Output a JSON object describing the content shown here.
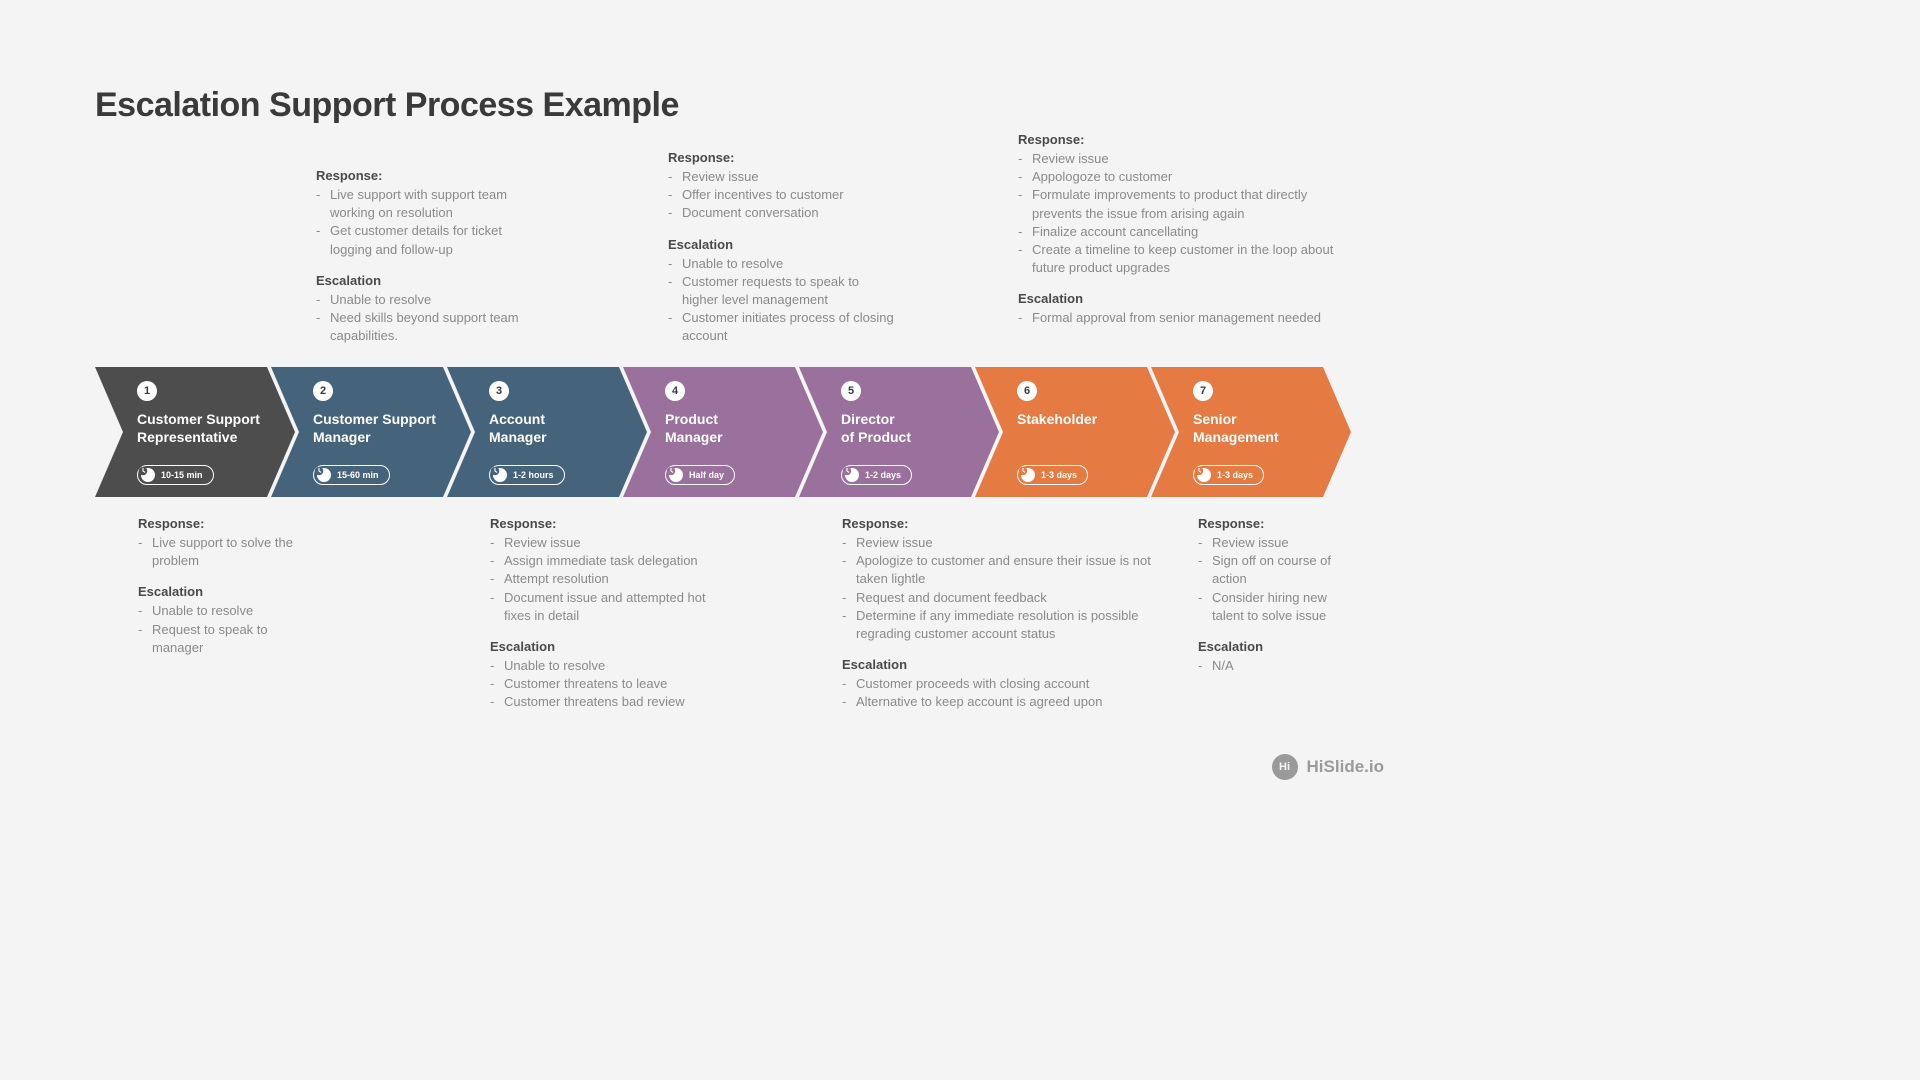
{
  "title": "Escalation Support Process Example",
  "background_color": "#f5f4f4",
  "attribution": {
    "badge": "Hi",
    "text": "HiSlide.io"
  },
  "steps": [
    {
      "num": "1",
      "title": "Customer Support\nRepresentative",
      "time": "10-15 min",
      "color": "#4d4d4d",
      "text_pos": "below",
      "response": [
        "Live support to solve the problem"
      ],
      "escalation": [
        "Unable to resolve",
        "Request to speak to manager"
      ]
    },
    {
      "num": "2",
      "title": "Customer Support\nManager",
      "time": "15-60 min",
      "color": "#46637c",
      "text_pos": "above",
      "response": [
        "Live support with support team working on resolution",
        "Get customer details for ticket logging and follow-up"
      ],
      "escalation": [
        "Unable to resolve",
        "Need skills beyond support team capabilities."
      ]
    },
    {
      "num": "3",
      "title": "Account\nManager",
      "time": "1-2 hours",
      "color": "#46637c",
      "text_pos": "below",
      "response": [
        "Review issue",
        "Assign immediate task delegation",
        "Attempt resolution",
        "Document issue and attempted hot fixes in detail"
      ],
      "escalation": [
        "Unable to resolve",
        "Customer threatens to leave",
        "Customer threatens bad review"
      ]
    },
    {
      "num": "4",
      "title": "Product\nManager",
      "time": "Half day",
      "color": "#99719c",
      "text_pos": "above",
      "response": [
        "Review issue",
        "Offer incentives to customer",
        "Document conversation"
      ],
      "escalation": [
        "Unable to resolve",
        "Customer requests to speak to higher level management",
        "Customer initiates process of closing account"
      ]
    },
    {
      "num": "5",
      "title": "Director\nof Product",
      "time": "1-2 days",
      "color": "#99719c",
      "text_pos": "below",
      "response": [
        "Review issue",
        "Apologize to customer and ensure their issue is not taken lightle",
        "Request and document feedback",
        "Determine if any immediate resolution is possible regrading customer account status"
      ],
      "escalation": [
        "Customer proceeds with closing account",
        "Alternative to keep account is agreed upon"
      ]
    },
    {
      "num": "6",
      "title": "Stakeholder",
      "time": "1-3 days",
      "color": "#e57a42",
      "text_pos": "above",
      "response": [
        "Review issue",
        "Appologoze to customer",
        "Formulate improvements to product that directly prevents the issue from arising again",
        "Finalize account cancellating",
        "Create a timeline to keep customer in the loop about future product upgrades"
      ],
      "escalation": [
        "Formal approval from senior management needed"
      ]
    },
    {
      "num": "7",
      "title": "Senior\nManagement",
      "time": "1-3 days",
      "color": "#e57a42",
      "text_pos": "below",
      "response": [
        "Review issue",
        "Sign off on course of action",
        "Consider hiring new talent to solve issue"
      ],
      "escalation": [
        "N/A"
      ]
    }
  ],
  "labels": {
    "response": "Response:",
    "escalation": "Escalation"
  }
}
